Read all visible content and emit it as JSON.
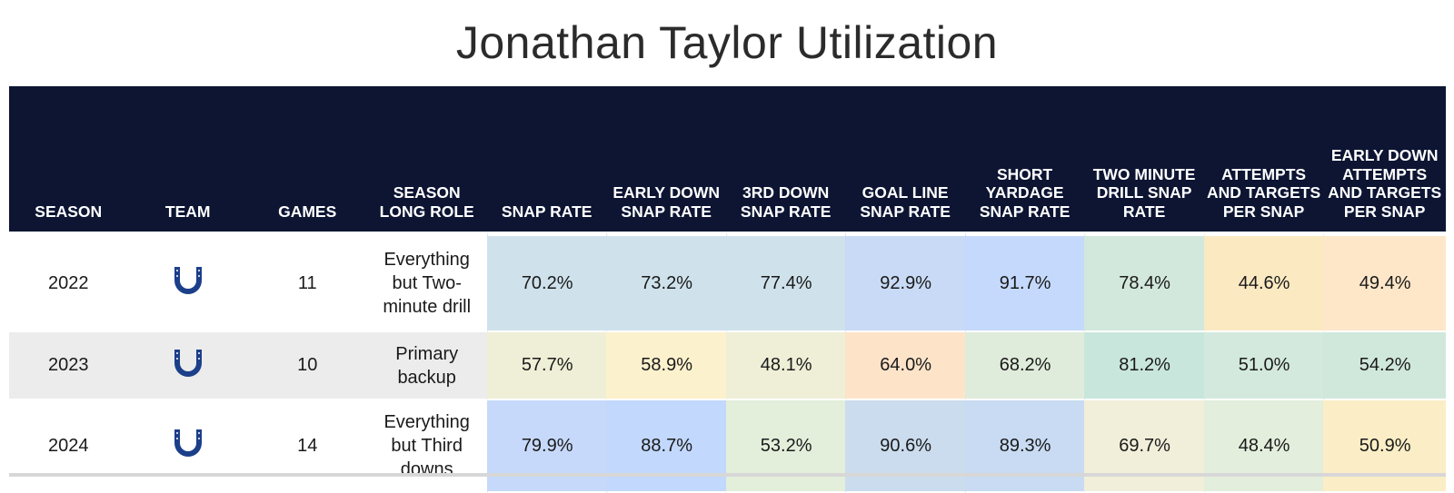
{
  "title": "Jonathan Taylor Utilization",
  "columns": [
    "SEASON",
    "TEAM",
    "GAMES",
    "SEASON LONG ROLE",
    "SNAP RATE",
    "EARLY DOWN SNAP RATE",
    "3RD DOWN SNAP RATE",
    "GOAL LINE SNAP RATE",
    "SHORT YARDAGE SNAP RATE",
    "TWO MINUTE DRILL SNAP RATE",
    "ATTEMPTS AND TARGETS PER SNAP",
    "EARLY DOWN ATTEMPTS AND TARGETS PER SNAP"
  ],
  "rows": [
    {
      "season": "2022",
      "team_icon": "horseshoe-logo-icon",
      "games": "11",
      "role": "Everything but Two-minute drill",
      "cells": [
        {
          "text": "70.2%",
          "color": "#cfe2ec"
        },
        {
          "text": "73.2%",
          "color": "#cfe2ec"
        },
        {
          "text": "77.4%",
          "color": "#cfe2ec"
        },
        {
          "text": "92.9%",
          "color": "#c8daf5"
        },
        {
          "text": "91.7%",
          "color": "#c4d9fb"
        },
        {
          "text": "78.4%",
          "color": "#d2e8dc"
        },
        {
          "text": "44.6%",
          "color": "#fbe9c2"
        },
        {
          "text": "49.4%",
          "color": "#fde7c8"
        }
      ]
    },
    {
      "season": "2023",
      "team_icon": "horseshoe-logo-icon",
      "games": "10",
      "role": "Primary backup",
      "cells": [
        {
          "text": "57.7%",
          "color": "#eeefd6"
        },
        {
          "text": "58.9%",
          "color": "#fbf1cd"
        },
        {
          "text": "48.1%",
          "color": "#eeefd6"
        },
        {
          "text": "64.0%",
          "color": "#fde4c9"
        },
        {
          "text": "68.2%",
          "color": "#e0ecdb"
        },
        {
          "text": "81.2%",
          "color": "#c9e6dc"
        },
        {
          "text": "51.0%",
          "color": "#d3e9dd"
        },
        {
          "text": "54.2%",
          "color": "#d0e8dc"
        }
      ]
    },
    {
      "season": "2024",
      "team_icon": "horseshoe-logo-icon",
      "games": "14",
      "role": "Everything but Third downs",
      "cells": [
        {
          "text": "79.9%",
          "color": "#c6d9fa"
        },
        {
          "text": "88.7%",
          "color": "#c2d8fc"
        },
        {
          "text": "53.2%",
          "color": "#e3eedb"
        },
        {
          "text": "90.6%",
          "color": "#cbdcee"
        },
        {
          "text": "89.3%",
          "color": "#c8dbf3"
        },
        {
          "text": "69.7%",
          "color": "#f1efda"
        },
        {
          "text": "48.4%",
          "color": "#e3eedc"
        },
        {
          "text": "50.9%",
          "color": "#fbeec6"
        }
      ]
    }
  ],
  "colors": {
    "header_bg": "#0d1533",
    "logo": "#1c3f8a"
  },
  "chart_data": {
    "type": "table",
    "title": "Jonathan Taylor Utilization",
    "columns": [
      "SEASON",
      "TEAM",
      "GAMES",
      "SEASON LONG ROLE",
      "SNAP RATE",
      "EARLY DOWN SNAP RATE",
      "3RD DOWN SNAP RATE",
      "GOAL LINE SNAP RATE",
      "SHORT YARDAGE SNAP RATE",
      "TWO MINUTE DRILL SNAP RATE",
      "ATTEMPTS AND TARGETS PER SNAP",
      "EARLY DOWN ATTEMPTS AND TARGETS PER SNAP"
    ],
    "rows": [
      [
        "2022",
        "",
        "11",
        "Everything but Two-minute drill",
        "70.2%",
        "73.2%",
        "77.4%",
        "92.9%",
        "91.7%",
        "78.4%",
        "44.6%",
        "49.4%"
      ],
      [
        "2023",
        "",
        "10",
        "Primary backup",
        "57.7%",
        "58.9%",
        "48.1%",
        "64.0%",
        "68.2%",
        "81.2%",
        "51.0%",
        "54.2%"
      ],
      [
        "2024",
        "",
        "14",
        "Everything but Third downs",
        "79.9%",
        "88.7%",
        "53.2%",
        "90.6%",
        "89.3%",
        "69.7%",
        "48.4%",
        "50.9%"
      ]
    ]
  }
}
